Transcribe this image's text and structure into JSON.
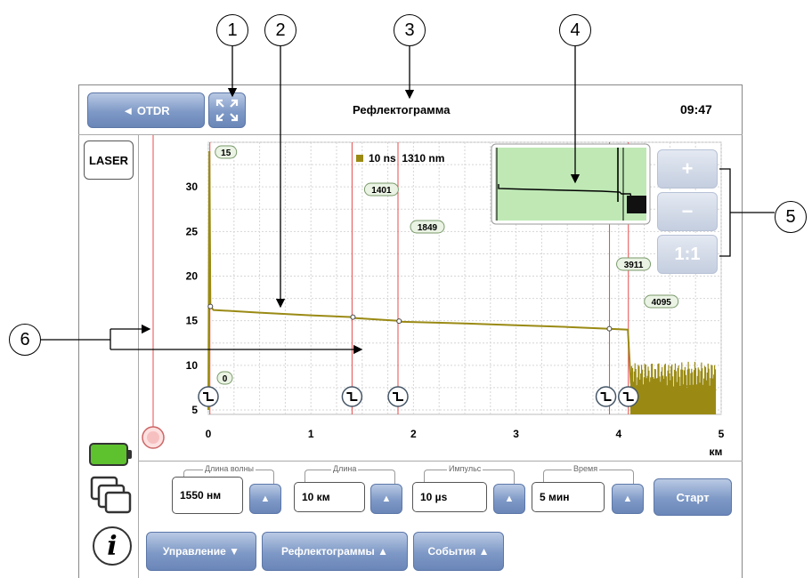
{
  "callouts": [
    "1",
    "2",
    "3",
    "4",
    "5",
    "6"
  ],
  "header": {
    "back_label": "◄ OTDR",
    "title": "Рефлектограмма",
    "time": "09:47"
  },
  "sidebar": {
    "laser_label": "LASER",
    "battery_color": "#5ec22e"
  },
  "chart": {
    "legend": "10 ns  1310 nm",
    "trace_color": "#9a8a14",
    "y_ticks": [
      "30",
      "25",
      "20",
      "15",
      "10",
      "5"
    ],
    "x_ticks": [
      "0",
      "1",
      "2",
      "3",
      "4",
      "5"
    ],
    "x_unit": "км",
    "markers": [
      "15",
      "1401",
      "1849",
      "3911",
      "4095",
      "0"
    ]
  },
  "chart_data": {
    "type": "line",
    "xlabel": "км",
    "ylabel": "",
    "xlim": [
      0,
      5
    ],
    "ylim": [
      4.5,
      35
    ],
    "series": [
      {
        "name": "10 ns  1310 nm",
        "x": [
          0.0,
          0.01,
          0.02,
          0.05,
          0.5,
          1.0,
          1.41,
          1.42,
          1.85,
          1.86,
          2.5,
          3.0,
          3.5,
          3.91,
          4.09,
          4.1,
          4.12,
          4.15,
          4.2,
          4.5,
          4.8,
          4.95
        ],
        "y": [
          5,
          34,
          16.6,
          16.2,
          15.9,
          15.6,
          15.4,
          15.3,
          15.0,
          14.9,
          14.7,
          14.5,
          14.3,
          14.1,
          14.0,
          12,
          8,
          7.5,
          7.8,
          7.5,
          7.8,
          7.2
        ]
      }
    ],
    "markers_km": [
      0.015,
      1.401,
      1.849,
      3.911,
      4.095,
      0
    ],
    "events_km": [
      0.0,
      1.401,
      1.849,
      3.911,
      4.095
    ]
  },
  "zoom": {
    "plus": "+",
    "minus": "−",
    "reset": "1:1"
  },
  "params": [
    {
      "title": "Длина волны",
      "value": "1550 нм"
    },
    {
      "title": "Длина",
      "value": "10 км"
    },
    {
      "title": "Импульс",
      "value": "10 µs"
    },
    {
      "title": "Время",
      "value": "5 мин"
    }
  ],
  "start_label": "Старт",
  "up_arrow": "▲",
  "bottom_tabs": [
    {
      "label": "Управление ▼"
    },
    {
      "label": "Рефлектограммы ▲"
    },
    {
      "label": "События ▲"
    }
  ],
  "info_glyph": "i"
}
